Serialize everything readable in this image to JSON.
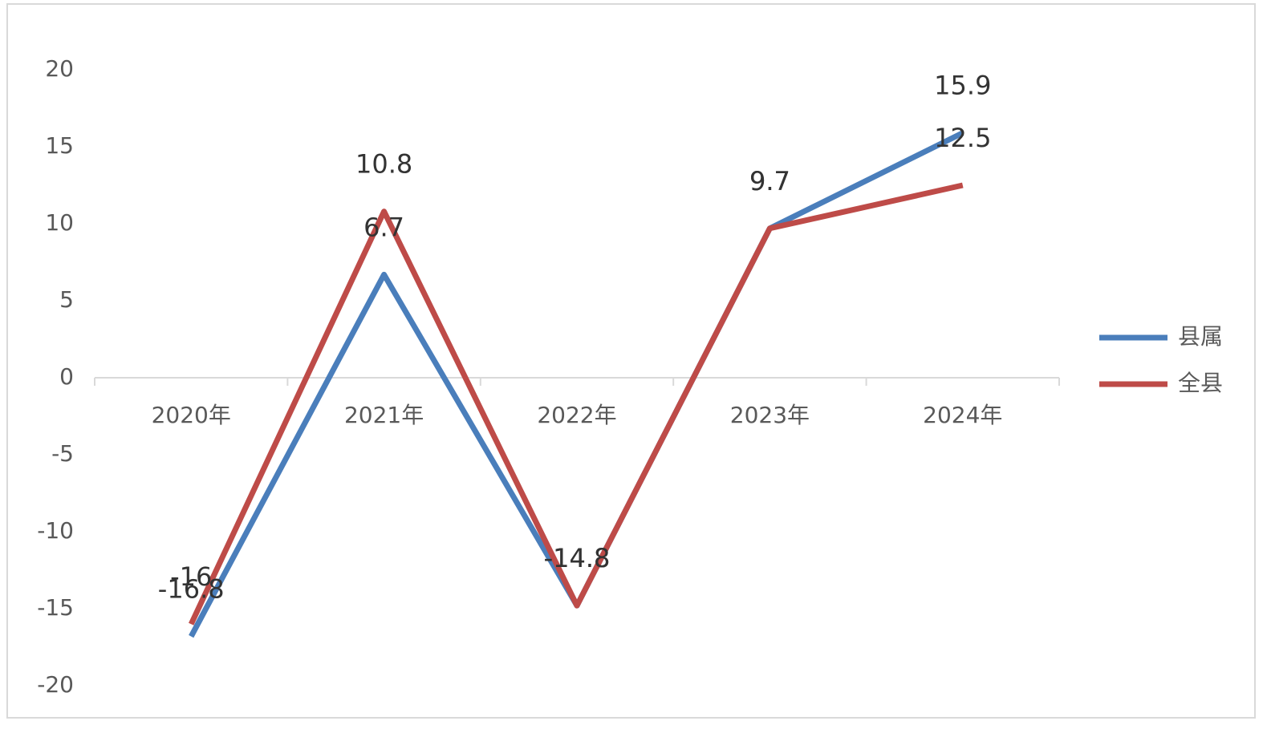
{
  "chart_data": {
    "type": "line",
    "categories": [
      "2020年",
      "2021年",
      "2022年",
      "2023年",
      "2024年"
    ],
    "series": [
      {
        "name": "县属",
        "color": "#4a7ebb",
        "values": [
          -16.8,
          6.7,
          -14.8,
          9.7,
          15.9
        ]
      },
      {
        "name": "全县",
        "color": "#be4b48",
        "values": [
          -16,
          10.8,
          -14.8,
          9.7,
          12.5
        ]
      }
    ],
    "ylim": [
      -20,
      20
    ],
    "yticks": [
      -20,
      -15,
      -10,
      -5,
      0,
      5,
      10,
      15,
      20
    ],
    "legend": "right"
  }
}
